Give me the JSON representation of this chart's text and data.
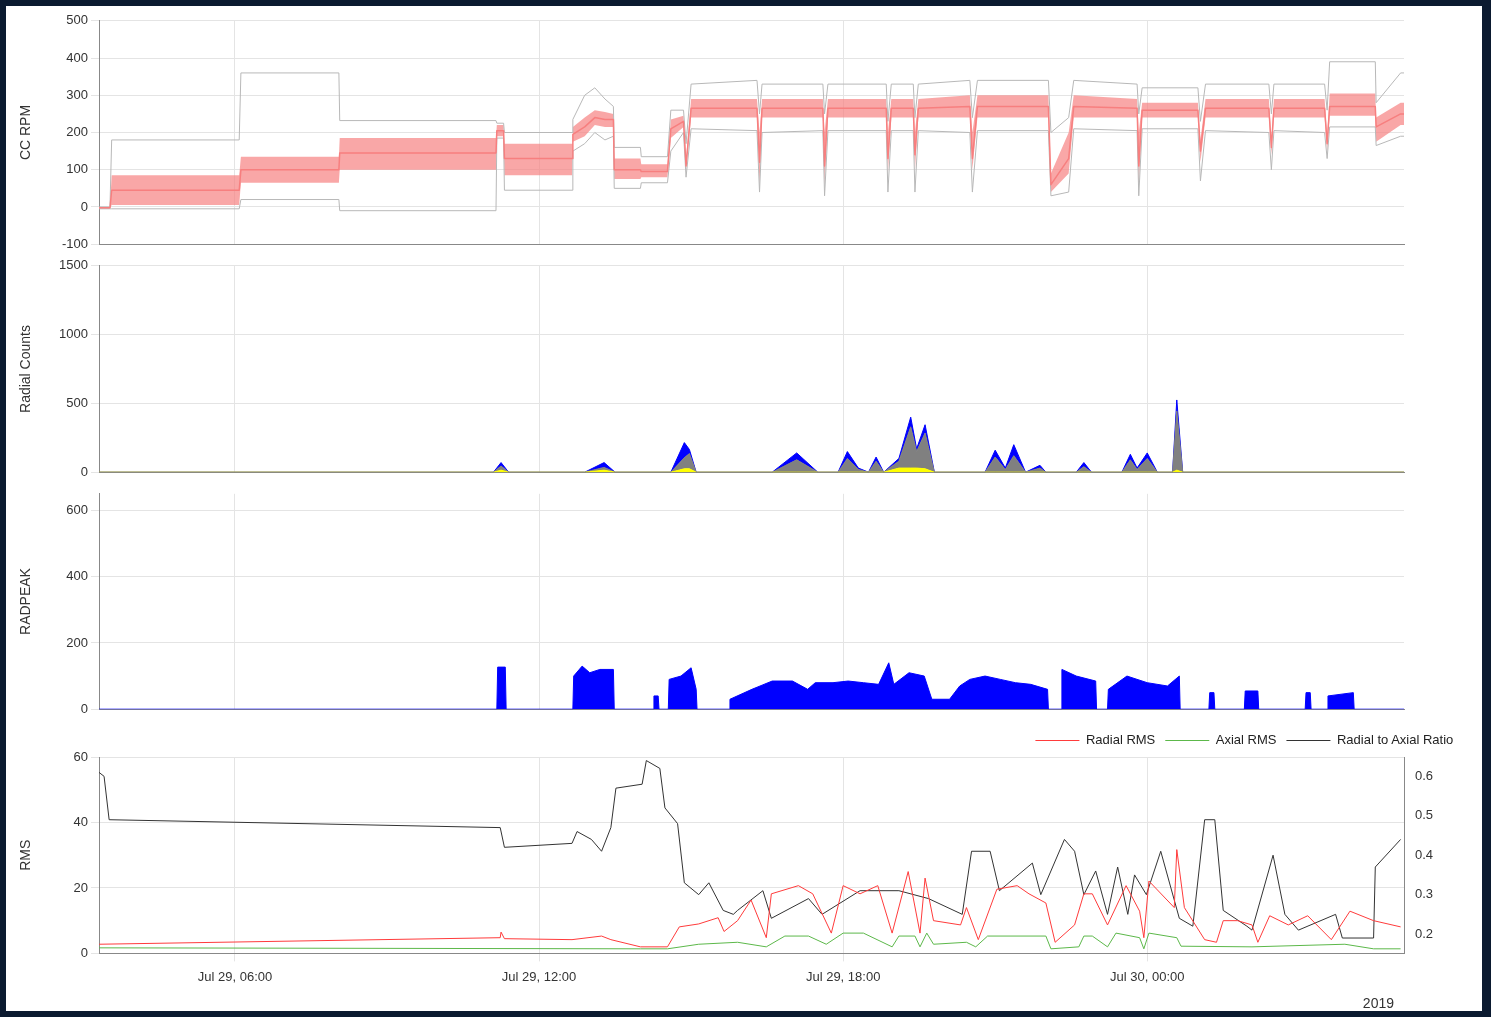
{
  "chart_data": [
    {
      "type": "line",
      "ylabel": "CC RPM",
      "grid": true,
      "tick_labels": "y",
      "xlim": [
        "2019-07-29T03:19",
        "2019-07-30T05:04"
      ],
      "ylim": [
        -100,
        500
      ],
      "yticks": [
        -100,
        0,
        100,
        200,
        300,
        400,
        500
      ],
      "xticks": [
        {
          "value": "2019-07-29T06:00",
          "label": null
        },
        {
          "value": "2019-07-29T12:00",
          "label": null
        },
        {
          "value": "2019-07-29T18:00",
          "label": null
        },
        {
          "value": "2019-07-30T00:00",
          "label": null
        }
      ],
      "x": [
        "2019-07-29T03:19",
        "2019-07-29T03:32",
        "2019-07-29T03:34",
        "2019-07-29T06:05",
        "2019-07-29T06:07",
        "2019-07-29T08:03",
        "2019-07-29T08:04",
        "2019-07-29T11:09",
        "2019-07-29T11:10",
        "2019-07-29T11:18",
        "2019-07-29T11:19",
        "2019-07-29T12:39",
        "2019-07-29T12:40",
        "2019-07-29T12:54",
        "2019-07-29T13:06",
        "2019-07-29T13:18",
        "2019-07-29T13:28",
        "2019-07-29T13:29",
        "2019-07-29T14:00",
        "2019-07-29T14:01",
        "2019-07-29T14:32",
        "2019-07-29T14:36",
        "2019-07-29T14:51",
        "2019-07-29T14:54",
        "2019-07-29T15:00",
        "2019-07-29T16:18",
        "2019-07-29T16:21",
        "2019-07-29T16:24",
        "2019-07-29T17:36",
        "2019-07-29T17:38",
        "2019-07-29T17:42",
        "2019-07-29T18:51",
        "2019-07-29T18:53",
        "2019-07-29T18:57",
        "2019-07-29T19:23",
        "2019-07-29T19:25",
        "2019-07-29T19:29",
        "2019-07-29T20:30",
        "2019-07-29T20:33",
        "2019-07-29T20:39",
        "2019-07-29T22:03",
        "2019-07-29T22:06",
        "2019-07-29T22:27",
        "2019-07-29T22:33",
        "2019-07-29T23:48",
        "2019-07-29T23:50",
        "2019-07-29T23:54",
        "2019-07-30T01:00",
        "2019-07-30T01:03",
        "2019-07-30T01:09",
        "2019-07-30T02:24",
        "2019-07-30T02:27",
        "2019-07-30T02:30",
        "2019-07-30T03:30",
        "2019-07-30T03:33",
        "2019-07-30T03:36",
        "2019-07-30T04:30",
        "2019-07-30T04:31",
        "2019-07-30T05:00",
        "2019-07-30T05:04"
      ],
      "series": [
        {
          "color": "#b8b8b8",
          "values": [
            0,
            0,
            180,
            180,
            360,
            360,
            232,
            232,
            225,
            225,
            200,
            200,
            235,
            300,
            320,
            290,
            270,
            160,
            160,
            135,
            135,
            260,
            260,
            170,
            330,
            340,
            250,
            330,
            330,
            250,
            330,
            330,
            230,
            330,
            330,
            240,
            330,
            340,
            240,
            340,
            340,
            200,
            240,
            340,
            330,
            250,
            320,
            320,
            230,
            330,
            330,
            250,
            330,
            330,
            260,
            390,
            390,
            280,
            360,
            360
          ]
        },
        {
          "color": "#b8b8b8",
          "values": [
            -5,
            -5,
            -5,
            -5,
            20,
            20,
            -10,
            -10,
            185,
            185,
            45,
            45,
            150,
            170,
            200,
            180,
            190,
            50,
            50,
            65,
            65,
            150,
            200,
            80,
            210,
            205,
            40,
            200,
            205,
            30,
            205,
            205,
            40,
            205,
            205,
            40,
            205,
            200,
            40,
            205,
            205,
            30,
            40,
            210,
            205,
            30,
            210,
            210,
            70,
            205,
            200,
            100,
            205,
            200,
            130,
            215,
            215,
            165,
            190,
            190
          ]
        },
        {
          "color": "#f77f7f",
          "values": [
            -2,
            -2,
            45,
            45,
            100,
            100,
            145,
            145,
            205,
            205,
            130,
            130,
            195,
            215,
            240,
            235,
            235,
            100,
            100,
            95,
            95,
            210,
            230,
            110,
            265,
            265,
            120,
            265,
            265,
            110,
            265,
            265,
            130,
            265,
            265,
            140,
            265,
            270,
            130,
            270,
            270,
            60,
            130,
            270,
            265,
            110,
            260,
            260,
            150,
            265,
            265,
            160,
            265,
            265,
            170,
            270,
            270,
            215,
            250,
            250
          ],
          "lower": [
            -5,
            -5,
            5,
            5,
            65,
            65,
            100,
            100,
            190,
            190,
            85,
            85,
            175,
            190,
            220,
            215,
            215,
            75,
            75,
            80,
            80,
            185,
            215,
            100,
            240,
            240,
            60,
            240,
            240,
            60,
            240,
            240,
            90,
            240,
            240,
            100,
            240,
            240,
            100,
            240,
            240,
            40,
            90,
            240,
            240,
            60,
            240,
            240,
            120,
            240,
            240,
            140,
            240,
            240,
            150,
            245,
            245,
            175,
            220,
            220
          ],
          "upper": [
            0,
            0,
            85,
            85,
            135,
            135,
            185,
            185,
            220,
            220,
            170,
            170,
            215,
            240,
            260,
            255,
            250,
            130,
            130,
            115,
            115,
            235,
            245,
            130,
            290,
            290,
            200,
            290,
            290,
            200,
            290,
            290,
            200,
            290,
            290,
            200,
            290,
            300,
            200,
            300,
            300,
            90,
            200,
            300,
            290,
            200,
            280,
            280,
            180,
            290,
            290,
            180,
            290,
            290,
            190,
            305,
            305,
            240,
            280,
            280
          ]
        }
      ]
    },
    {
      "type": "area",
      "stacked": true,
      "ylabel": "Radial Counts",
      "grid": true,
      "tick_labels": "y",
      "xlim": [
        "2019-07-29T03:19",
        "2019-07-30T05:04"
      ],
      "ylim": [
        0,
        1500
      ],
      "yticks": [
        0,
        500,
        1000,
        1500
      ],
      "xticks": [
        {
          "value": "2019-07-29T06:00",
          "label": null
        },
        {
          "value": "2019-07-29T12:00",
          "label": null
        },
        {
          "value": "2019-07-29T18:00",
          "label": null
        },
        {
          "value": "2019-07-30T00:00",
          "label": null
        }
      ],
      "x": [
        "2019-07-29T03:19",
        "2019-07-29T11:06",
        "2019-07-29T11:15",
        "2019-07-29T11:24",
        "2019-07-29T12:54",
        "2019-07-29T13:17",
        "2019-07-29T13:30",
        "2019-07-29T14:36",
        "2019-07-29T14:52",
        "2019-07-29T14:58",
        "2019-07-29T15:06",
        "2019-07-29T16:36",
        "2019-07-29T17:05",
        "2019-07-29T17:30",
        "2019-07-29T17:54",
        "2019-07-29T18:05",
        "2019-07-29T18:18",
        "2019-07-29T18:30",
        "2019-07-29T18:39",
        "2019-07-29T18:48",
        "2019-07-29T19:06",
        "2019-07-29T19:20",
        "2019-07-29T19:27",
        "2019-07-29T19:37",
        "2019-07-29T19:48",
        "2019-07-29T20:48",
        "2019-07-29T21:00",
        "2019-07-29T21:12",
        "2019-07-29T21:22",
        "2019-07-29T21:36",
        "2019-07-29T21:53",
        "2019-07-29T22:00",
        "2019-07-29T22:36",
        "2019-07-29T22:45",
        "2019-07-29T22:54",
        "2019-07-29T23:30",
        "2019-07-29T23:40",
        "2019-07-29T23:48",
        "2019-07-30T00:00",
        "2019-07-30T00:12",
        "2019-07-30T00:30",
        "2019-07-30T00:35",
        "2019-07-30T00:42",
        "2019-07-30T05:04"
      ],
      "series": [
        {
          "color": "#ffff00",
          "values": [
            0,
            0,
            15,
            0,
            0,
            15,
            0,
            0,
            25,
            25,
            0,
            0,
            0,
            0,
            0,
            0,
            0,
            0,
            0,
            0,
            30,
            30,
            30,
            25,
            0,
            0,
            0,
            0,
            0,
            0,
            0,
            0,
            0,
            0,
            0,
            0,
            0,
            0,
            0,
            0,
            0,
            15,
            0,
            0
          ]
        },
        {
          "color": "#808080",
          "values": [
            0,
            0,
            30,
            0,
            0,
            20,
            0,
            0,
            80,
            110,
            0,
            0,
            90,
            0,
            0,
            100,
            20,
            0,
            80,
            0,
            50,
            300,
            120,
            260,
            0,
            0,
            110,
            20,
            120,
            0,
            30,
            0,
            0,
            40,
            0,
            0,
            90,
            20,
            100,
            0,
            0,
            430,
            0,
            0
          ]
        },
        {
          "color": "#0000ff",
          "values": [
            0,
            0,
            25,
            0,
            0,
            35,
            0,
            0,
            110,
            30,
            0,
            0,
            50,
            0,
            0,
            50,
            10,
            0,
            30,
            0,
            20,
            70,
            20,
            60,
            0,
            0,
            50,
            10,
            80,
            0,
            20,
            0,
            0,
            30,
            0,
            0,
            40,
            10,
            40,
            0,
            0,
            80,
            0,
            0
          ]
        }
      ]
    },
    {
      "type": "area",
      "ylabel": "RADPEAK",
      "grid": true,
      "tick_labels": "y",
      "xlim": [
        "2019-07-29T03:19",
        "2019-07-30T05:04"
      ],
      "ylim": [
        0,
        650
      ],
      "yticks": [
        0,
        200,
        400,
        600
      ],
      "xticks": [
        {
          "value": "2019-07-29T06:00",
          "label": null
        },
        {
          "value": "2019-07-29T12:00",
          "label": null
        },
        {
          "value": "2019-07-29T18:00",
          "label": null
        },
        {
          "value": "2019-07-30T00:00",
          "label": null
        }
      ],
      "x": [
        "2019-07-29T03:19",
        "2019-07-29T11:10",
        "2019-07-29T11:11",
        "2019-07-29T11:20",
        "2019-07-29T11:21",
        "2019-07-29T12:40",
        "2019-07-29T12:41",
        "2019-07-29T12:51",
        "2019-07-29T13:00",
        "2019-07-29T13:12",
        "2019-07-29T13:28",
        "2019-07-29T13:29",
        "2019-07-29T14:15",
        "2019-07-29T14:16",
        "2019-07-29T14:21",
        "2019-07-29T14:22",
        "2019-07-29T14:33",
        "2019-07-29T14:34",
        "2019-07-29T14:48",
        "2019-07-29T15:00",
        "2019-07-29T15:06",
        "2019-07-29T15:07",
        "2019-07-29T15:45",
        "2019-07-29T15:46",
        "2019-07-29T16:12",
        "2019-07-29T16:36",
        "2019-07-29T17:00",
        "2019-07-29T17:18",
        "2019-07-29T17:27",
        "2019-07-29T17:48",
        "2019-07-29T18:06",
        "2019-07-29T18:24",
        "2019-07-29T18:42",
        "2019-07-29T18:54",
        "2019-07-29T19:00",
        "2019-07-29T19:18",
        "2019-07-29T19:36",
        "2019-07-29T19:45",
        "2019-07-29T20:06",
        "2019-07-29T20:18",
        "2019-07-29T20:30",
        "2019-07-29T20:48",
        "2019-07-29T21:06",
        "2019-07-29T21:24",
        "2019-07-29T21:42",
        "2019-07-29T22:02",
        "2019-07-29T22:03",
        "2019-07-29T22:18",
        "2019-07-29T22:19",
        "2019-07-29T22:36",
        "2019-07-29T22:59",
        "2019-07-29T23:00",
        "2019-07-29T23:13",
        "2019-07-29T23:14",
        "2019-07-29T23:36",
        "2019-07-30T00:00",
        "2019-07-30T00:24",
        "2019-07-30T00:38",
        "2019-07-30T00:39",
        "2019-07-30T01:13",
        "2019-07-30T01:14",
        "2019-07-30T01:19",
        "2019-07-30T01:20",
        "2019-07-30T01:55",
        "2019-07-30T01:56",
        "2019-07-30T02:11",
        "2019-07-30T02:12",
        "2019-07-30T03:07",
        "2019-07-30T03:08",
        "2019-07-30T03:13",
        "2019-07-30T03:14",
        "2019-07-30T03:33",
        "2019-07-30T03:34",
        "2019-07-30T04:04",
        "2019-07-30T04:05",
        "2019-07-30T05:04"
      ],
      "color": "#0000ff",
      "values": [
        0,
        0,
        127,
        127,
        0,
        0,
        100,
        130,
        110,
        120,
        120,
        0,
        0,
        40,
        40,
        0,
        0,
        90,
        100,
        125,
        60,
        0,
        0,
        30,
        60,
        85,
        85,
        60,
        80,
        80,
        85,
        80,
        75,
        140,
        75,
        110,
        100,
        30,
        30,
        70,
        90,
        100,
        90,
        80,
        75,
        60,
        0,
        0,
        120,
        100,
        85,
        0,
        0,
        60,
        100,
        80,
        70,
        100,
        0,
        0,
        50,
        50,
        0,
        0,
        55,
        55,
        0,
        0,
        50,
        50,
        0,
        0,
        40,
        50,
        0,
        0
      ]
    },
    {
      "type": "line",
      "ylabel": "RMS",
      "grid": true,
      "legend": "top right",
      "xlim": [
        "2019-07-29T03:19",
        "2019-07-30T05:04"
      ],
      "ylim": [
        0,
        60
      ],
      "yticks": [
        0,
        20,
        40,
        60
      ],
      "y2lim": [
        0.151,
        0.649
      ],
      "y2ticks": [
        0.2,
        0.3,
        0.4,
        0.5,
        0.6
      ],
      "xticks": [
        {
          "value": "2019-07-29T06:00",
          "label": "Jul 29, 06:00"
        },
        {
          "value": "2019-07-29T12:00",
          "label": "Jul 29, 12:00"
        },
        {
          "value": "2019-07-29T18:00",
          "label": "Jul 29, 18:00"
        },
        {
          "value": "2019-07-30T00:00",
          "label": "Jul 30, 00:00"
        }
      ],
      "annotations": [
        "2019"
      ],
      "series": [
        {
          "name": "Radial RMS",
          "color": "#ff3b3b",
          "x": [
            "2019-07-29T03:19",
            "2019-07-29T11:14",
            "2019-07-29T11:15",
            "2019-07-29T11:19",
            "2019-07-29T12:39",
            "2019-07-29T13:14",
            "2019-07-29T13:25",
            "2019-07-29T14:00",
            "2019-07-29T14:32",
            "2019-07-29T14:46",
            "2019-07-29T15:09",
            "2019-07-29T15:32",
            "2019-07-29T15:39",
            "2019-07-29T15:55",
            "2019-07-29T16:11",
            "2019-07-29T16:29",
            "2019-07-29T16:35",
            "2019-07-29T17:07",
            "2019-07-29T17:24",
            "2019-07-29T17:46",
            "2019-07-29T18:00",
            "2019-07-29T18:20",
            "2019-07-29T18:41",
            "2019-07-29T18:58",
            "2019-07-29T19:17",
            "2019-07-29T19:31",
            "2019-07-29T19:37",
            "2019-07-29T19:47",
            "2019-07-29T20:19",
            "2019-07-29T20:26",
            "2019-07-29T20:40",
            "2019-07-29T21:02",
            "2019-07-29T21:26",
            "2019-07-29T21:40",
            "2019-07-29T22:00",
            "2019-07-29T22:11",
            "2019-07-29T22:34",
            "2019-07-29T22:45",
            "2019-07-29T22:55",
            "2019-07-29T23:13",
            "2019-07-29T23:35",
            "2019-07-29T23:51",
            "2019-07-29T23:56",
            "2019-07-30T00:02",
            "2019-07-30T00:32",
            "2019-07-30T00:35",
            "2019-07-30T00:44",
            "2019-07-30T01:08",
            "2019-07-30T01:22",
            "2019-07-30T01:30",
            "2019-07-30T01:47",
            "2019-07-30T02:04",
            "2019-07-30T02:11",
            "2019-07-30T02:25",
            "2019-07-30T02:47",
            "2019-07-30T03:10",
            "2019-07-30T03:38",
            "2019-07-30T04:00",
            "2019-07-30T04:28",
            "2019-07-30T05:00"
          ],
          "values": [
            2.8,
            4.8,
            6.5,
            4.5,
            4.2,
            5.3,
            4.2,
            2.0,
            2.0,
            8.1,
            9,
            10.9,
            6.7,
            10,
            16.3,
            4.8,
            18.2,
            20.7,
            18.2,
            6.2,
            20.7,
            18.2,
            20.7,
            6.2,
            25,
            6.2,
            23,
            10,
            8.7,
            14,
            4.2,
            19.6,
            20.7,
            18.2,
            15.4,
            3.4,
            8.7,
            18.2,
            18.2,
            8.7,
            20.7,
            12.9,
            4.8,
            22.1,
            14,
            31.7,
            14,
            4.2,
            3.4,
            10,
            10,
            8.7,
            3.4,
            11.5,
            8.7,
            11.5,
            4.2,
            12.9,
            10,
            8.1
          ]
        },
        {
          "name": "Axial RMS",
          "color": "#5cb84a",
          "x": [
            "2019-07-29T03:19",
            "2019-07-29T14:00",
            "2019-07-29T14:32",
            "2019-07-29T15:09",
            "2019-07-29T15:55",
            "2019-07-29T16:29",
            "2019-07-29T16:51",
            "2019-07-29T17:19",
            "2019-07-29T17:40",
            "2019-07-29T18:00",
            "2019-07-29T18:24",
            "2019-07-29T18:58",
            "2019-07-29T19:06",
            "2019-07-29T19:25",
            "2019-07-29T19:31",
            "2019-07-29T19:39",
            "2019-07-29T19:47",
            "2019-07-29T20:26",
            "2019-07-29T20:37",
            "2019-07-29T20:51",
            "2019-07-29T22:00",
            "2019-07-29T22:06",
            "2019-07-29T22:39",
            "2019-07-29T22:45",
            "2019-07-29T22:55",
            "2019-07-29T23:13",
            "2019-07-29T23:23",
            "2019-07-29T23:51",
            "2019-07-29T23:56",
            "2019-07-30T00:02",
            "2019-07-30T00:35",
            "2019-07-30T00:40",
            "2019-07-30T02:04",
            "2019-07-30T03:54",
            "2019-07-30T04:28",
            "2019-07-30T05:00"
          ],
          "values": [
            1.7,
            1.4,
            1.4,
            2.8,
            3.4,
            2.0,
            5.3,
            5.3,
            2.8,
            6.2,
            6.2,
            2.0,
            5.3,
            5.3,
            2.0,
            6.2,
            2.8,
            3.4,
            2.0,
            5.3,
            5.3,
            1.4,
            2.0,
            5.3,
            5.3,
            2.0,
            6.2,
            4.8,
            1.4,
            6.2,
            4.8,
            2.2,
            2.0,
            2.8,
            1.4,
            1.4
          ]
        },
        {
          "name": "Radial to Axial Ratio",
          "color": "#333333",
          "axis": "y2",
          "x": [
            "2019-07-29T03:19",
            "2019-07-29T03:25",
            "2019-07-29T03:31",
            "2019-07-29T03:32",
            "2019-07-29T11:14",
            "2019-07-29T11:19",
            "2019-07-29T12:39",
            "2019-07-29T12:45",
            "2019-07-29T13:02",
            "2019-07-29T13:14",
            "2019-07-29T13:25",
            "2019-07-29T13:31",
            "2019-07-29T14:02",
            "2019-07-29T14:07",
            "2019-07-29T14:23",
            "2019-07-29T14:29",
            "2019-07-29T14:44",
            "2019-07-29T14:52",
            "2019-07-29T15:09",
            "2019-07-29T15:21",
            "2019-07-29T15:38",
            "2019-07-29T15:50",
            "2019-07-29T15:55",
            "2019-07-29T16:25",
            "2019-07-29T16:35",
            "2019-07-29T17:19",
            "2019-07-29T17:35",
            "2019-07-29T18:20",
            "2019-07-29T19:06",
            "2019-07-29T19:41",
            "2019-07-29T20:21",
            "2019-07-29T20:32",
            "2019-07-29T20:54",
            "2019-07-29T21:05",
            "2019-07-29T21:44",
            "2019-07-29T21:54",
            "2019-07-29T22:22",
            "2019-07-29T22:34",
            "2019-07-29T22:45",
            "2019-07-29T22:59",
            "2019-07-29T23:13",
            "2019-07-29T23:25",
            "2019-07-29T23:37",
            "2019-07-29T23:45",
            "2019-07-29T23:59",
            "2019-07-30T00:16",
            "2019-07-30T00:38",
            "2019-07-30T00:54",
            "2019-07-30T01:08",
            "2019-07-30T01:20",
            "2019-07-30T01:30",
            "2019-07-30T01:58",
            "2019-07-30T02:04",
            "2019-07-30T02:29",
            "2019-07-30T02:43",
            "2019-07-30T02:59",
            "2019-07-30T03:43",
            "2019-07-30T03:51",
            "2019-07-30T04:28",
            "2019-07-30T04:30",
            "2019-07-30T05:00"
          ],
          "values": [
            0.61,
            0.6,
            0.49,
            0.49,
            0.47,
            0.42,
            0.43,
            0.46,
            0.44,
            0.41,
            0.47,
            0.57,
            0.58,
            0.64,
            0.62,
            0.52,
            0.48,
            0.33,
            0.3,
            0.33,
            0.26,
            0.25,
            0.26,
            0.31,
            0.24,
            0.29,
            0.25,
            0.31,
            0.31,
            0.29,
            0.25,
            0.41,
            0.41,
            0.31,
            0.38,
            0.3,
            0.44,
            0.41,
            0.3,
            0.36,
            0.25,
            0.37,
            0.25,
            0.35,
            0.3,
            0.41,
            0.24,
            0.22,
            0.49,
            0.49,
            0.26,
            0.22,
            0.21,
            0.4,
            0.25,
            0.21,
            0.25,
            0.19,
            0.19,
            0.37,
            0.44
          ]
        }
      ]
    }
  ]
}
